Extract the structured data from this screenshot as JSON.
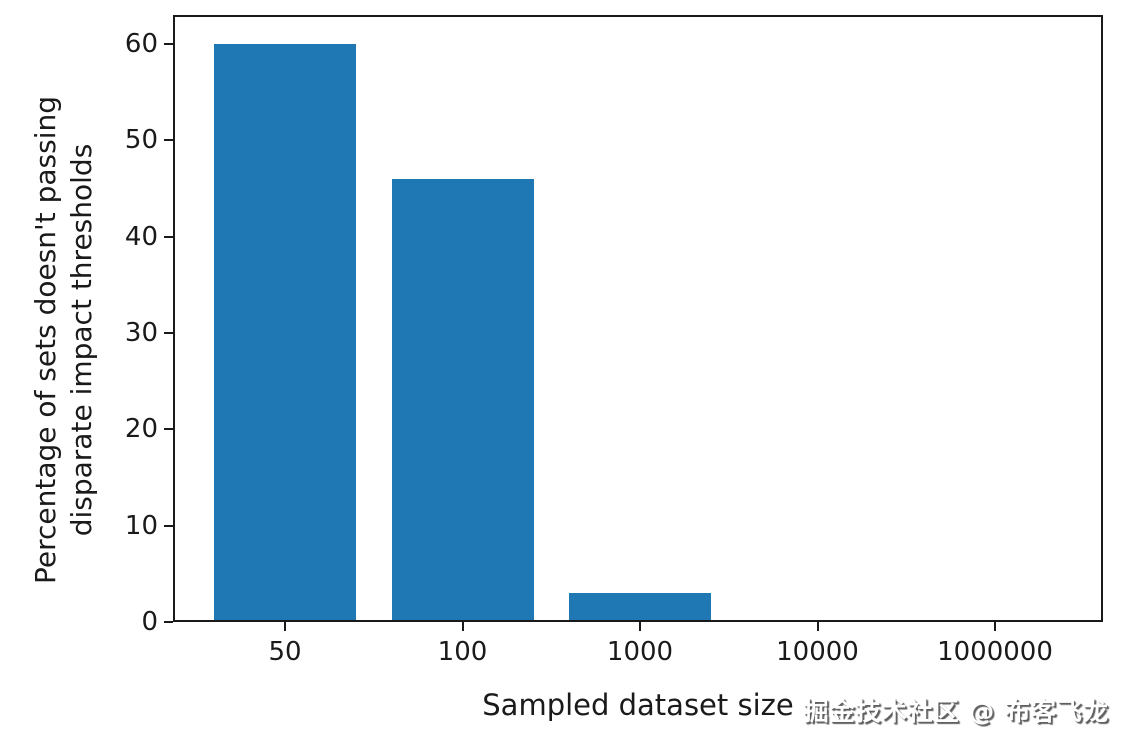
{
  "chart_data": {
    "type": "bar",
    "categories": [
      "50",
      "100",
      "1000",
      "10000",
      "1000000"
    ],
    "values": [
      60,
      46,
      3,
      0,
      0
    ],
    "title": "",
    "xlabel": "Sampled dataset size",
    "ylabel_line1": "Percentage of sets doesn't passing",
    "ylabel_line2": "disparate impact thresholds",
    "yticks": [
      0,
      10,
      20,
      30,
      40,
      50,
      60
    ],
    "ylim": [
      0,
      63
    ],
    "bar_color": "#1f77b4",
    "axis_color": "#1a1a1a",
    "grid": false,
    "legend_position": "none"
  },
  "watermark": {
    "text": "掘金技术社区 @ 布客飞龙"
  }
}
